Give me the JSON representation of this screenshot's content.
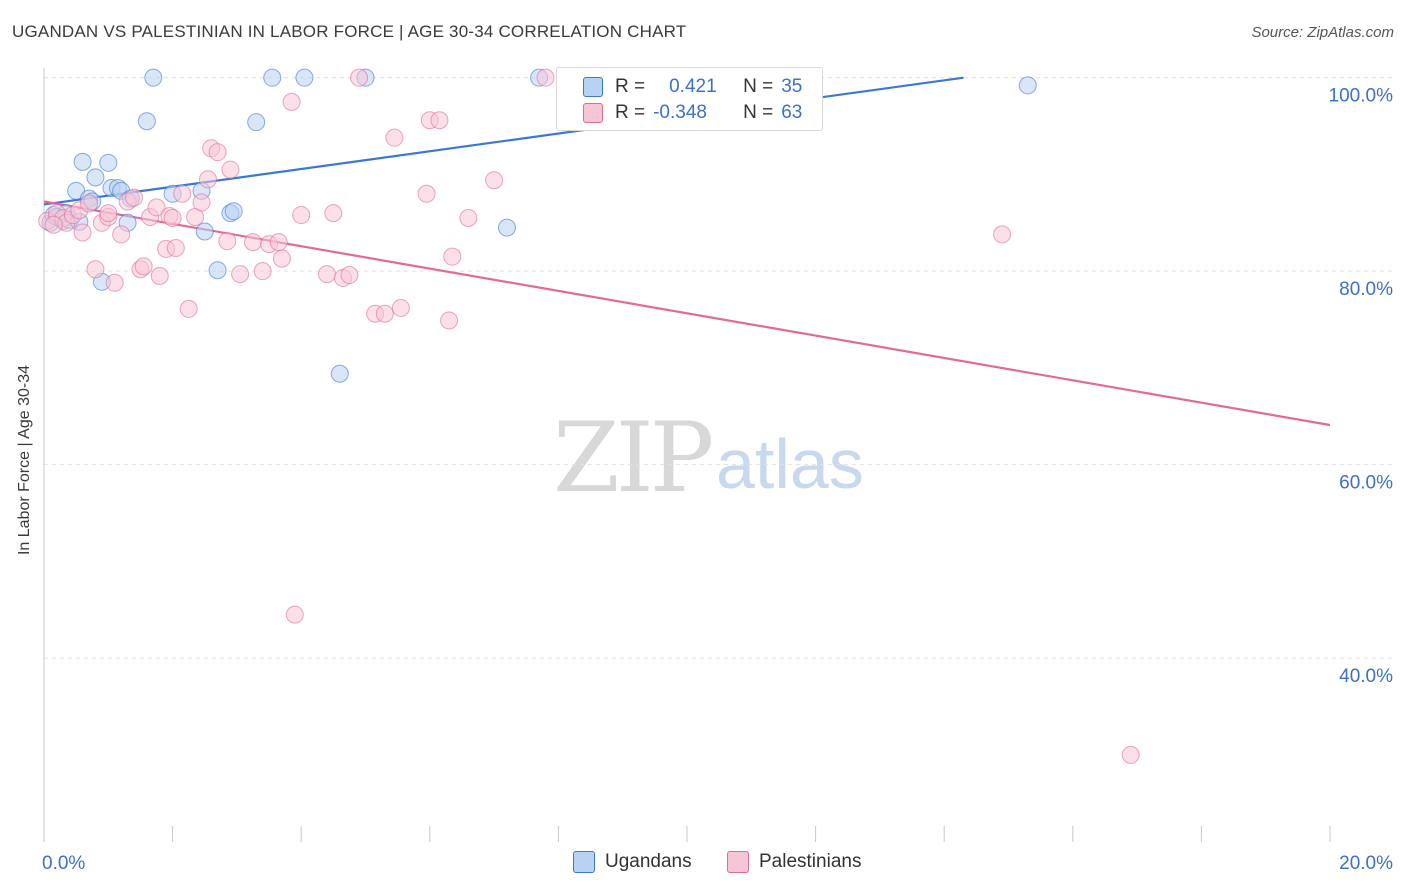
{
  "header": {
    "title": "UGANDAN VS PALESTINIAN IN LABOR FORCE | AGE 30-34 CORRELATION CHART",
    "source": "Source: ZipAtlas.com"
  },
  "watermark": {
    "part1": "ZIP",
    "part2": "atlas"
  },
  "colors": {
    "blue": "#3a78d6",
    "blue_fill": "#b8d2f3",
    "pink": "#e26a97",
    "pink_fill": "#f7c6d5",
    "axis_label": "#3c70c9",
    "grid": "#e2e2e2"
  },
  "legend": {
    "r_label": "R =",
    "n_label": "N =",
    "rows": [
      {
        "r": "0.421",
        "n": "35",
        "series": "Ugandans"
      },
      {
        "r": "-0.348",
        "n": "63",
        "series": "Palestinians"
      }
    ]
  },
  "chart_data": {
    "type": "scatter",
    "title": "UGANDAN VS PALESTINIAN IN LABOR FORCE | AGE 30-34 CORRELATION CHART",
    "xlabel": "",
    "ylabel": "In Labor Force | Age 30-34",
    "xlim": [
      0.0,
      20.0
    ],
    "ylim": [
      21.0,
      101.0
    ],
    "x_tick_labels": [
      "0.0%",
      "20.0%"
    ],
    "y_ticks": [
      40.0,
      60.0,
      80.0,
      100.0
    ],
    "y_tick_labels": [
      "40.0%",
      "60.0%",
      "80.0%",
      "100.0%"
    ],
    "grid": true,
    "series": [
      {
        "name": "Ugandans",
        "color": "#3a78d6",
        "fill": "#b8d2f3",
        "trend": {
          "x": [
            0.0,
            14.3
          ],
          "y": [
            86.9,
            100.0
          ]
        },
        "points": [
          [
            0.1,
            85.0
          ],
          [
            0.15,
            85.8
          ],
          [
            0.3,
            85.2
          ],
          [
            0.35,
            86.0
          ],
          [
            0.4,
            85.3
          ],
          [
            0.5,
            88.3
          ],
          [
            0.6,
            91.3
          ],
          [
            0.7,
            87.5
          ],
          [
            0.75,
            87.2
          ],
          [
            0.8,
            89.7
          ],
          [
            0.9,
            78.9
          ],
          [
            1.0,
            91.2
          ],
          [
            1.05,
            88.6
          ],
          [
            1.15,
            88.6
          ],
          [
            1.2,
            88.3
          ],
          [
            1.3,
            85.0
          ],
          [
            1.35,
            87.5
          ],
          [
            1.6,
            95.5
          ],
          [
            1.7,
            100.0
          ],
          [
            2.0,
            88.0
          ],
          [
            2.45,
            88.3
          ],
          [
            2.5,
            84.1
          ],
          [
            2.7,
            80.1
          ],
          [
            2.9,
            86.0
          ],
          [
            2.95,
            86.2
          ],
          [
            3.3,
            95.4
          ],
          [
            3.55,
            100.0
          ],
          [
            4.05,
            100.0
          ],
          [
            4.6,
            69.4
          ],
          [
            5.0,
            100.0
          ],
          [
            7.2,
            84.5
          ],
          [
            7.7,
            100.0
          ],
          [
            15.3,
            99.2
          ],
          [
            0.2,
            85.6
          ],
          [
            0.55,
            85.1
          ]
        ]
      },
      {
        "name": "Palestinians",
        "color": "#e26a97",
        "fill": "#f7c6d5",
        "trend": {
          "x": [
            0.0,
            20.0
          ],
          "y": [
            87.2,
            64.1
          ]
        },
        "points": [
          [
            0.05,
            85.2
          ],
          [
            0.2,
            86.0
          ],
          [
            0.3,
            85.5
          ],
          [
            0.35,
            85.0
          ],
          [
            0.45,
            85.8
          ],
          [
            0.55,
            86.3
          ],
          [
            0.6,
            84.0
          ],
          [
            0.7,
            87.0
          ],
          [
            0.8,
            80.2
          ],
          [
            0.9,
            85.0
          ],
          [
            1.0,
            85.6
          ],
          [
            1.1,
            78.8
          ],
          [
            1.2,
            83.8
          ],
          [
            1.3,
            87.2
          ],
          [
            1.4,
            87.6
          ],
          [
            1.5,
            80.2
          ],
          [
            1.55,
            80.5
          ],
          [
            1.65,
            85.6
          ],
          [
            1.75,
            86.6
          ],
          [
            1.8,
            79.5
          ],
          [
            1.9,
            82.3
          ],
          [
            1.95,
            85.7
          ],
          [
            2.05,
            82.4
          ],
          [
            2.15,
            88.0
          ],
          [
            2.25,
            76.1
          ],
          [
            2.35,
            85.6
          ],
          [
            2.45,
            87.1
          ],
          [
            2.55,
            89.5
          ],
          [
            2.6,
            92.7
          ],
          [
            2.7,
            92.3
          ],
          [
            2.85,
            83.1
          ],
          [
            2.9,
            90.5
          ],
          [
            3.05,
            79.7
          ],
          [
            3.25,
            83.0
          ],
          [
            3.4,
            80.0
          ],
          [
            3.5,
            82.8
          ],
          [
            3.65,
            83.0
          ],
          [
            3.7,
            81.3
          ],
          [
            3.85,
            97.5
          ],
          [
            3.9,
            44.5
          ],
          [
            4.0,
            85.8
          ],
          [
            4.4,
            79.7
          ],
          [
            4.5,
            86.0
          ],
          [
            4.65,
            79.3
          ],
          [
            4.75,
            79.6
          ],
          [
            4.9,
            100.0
          ],
          [
            5.15,
            75.6
          ],
          [
            5.3,
            75.6
          ],
          [
            5.45,
            93.8
          ],
          [
            5.55,
            76.2
          ],
          [
            5.95,
            88.0
          ],
          [
            6.0,
            95.6
          ],
          [
            6.15,
            95.6
          ],
          [
            6.3,
            74.9
          ],
          [
            6.35,
            81.5
          ],
          [
            6.6,
            85.5
          ],
          [
            7.0,
            89.4
          ],
          [
            7.8,
            100.0
          ],
          [
            14.9,
            83.8
          ],
          [
            16.9,
            30.0
          ],
          [
            0.15,
            84.8
          ],
          [
            1.0,
            86.0
          ],
          [
            2.0,
            85.5
          ]
        ]
      }
    ]
  }
}
